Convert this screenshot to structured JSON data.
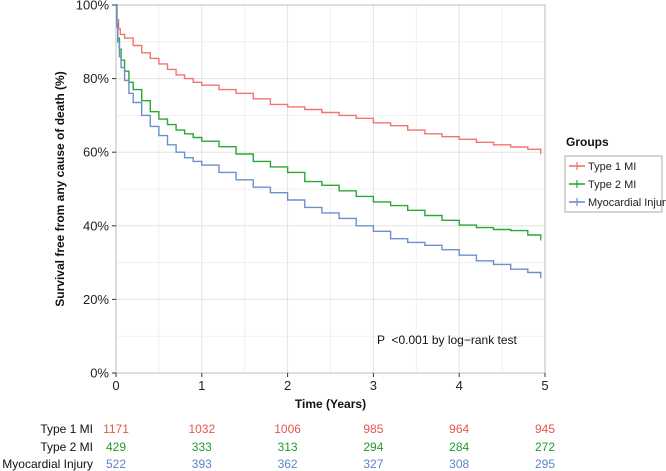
{
  "chart_data": {
    "type": "line",
    "title": "",
    "xlabel": "Time (Years)",
    "ylabel": "Survival free from any cause of death (%)",
    "xlim": [
      0,
      5
    ],
    "ylim": [
      0,
      100
    ],
    "x_ticks": [
      0,
      1,
      2,
      3,
      4,
      5
    ],
    "x_tick_labels": [
      "0",
      "1",
      "2",
      "3",
      "4",
      "5"
    ],
    "y_ticks": [
      0,
      20,
      40,
      60,
      80,
      100
    ],
    "y_tick_labels": [
      "0%",
      "20%",
      "40%",
      "60%",
      "80%",
      "100%"
    ],
    "grid": true,
    "legend": {
      "title": "Groups",
      "placement": "right"
    },
    "annotation": "P  <0.001 by log−rank test",
    "series": [
      {
        "name": "Type 1 MI",
        "color": "#f2756c",
        "points": [
          [
            0,
            100
          ],
          [
            0.01,
            96
          ],
          [
            0.03,
            93.5
          ],
          [
            0.05,
            92
          ],
          [
            0.1,
            91
          ],
          [
            0.2,
            89
          ],
          [
            0.3,
            87
          ],
          [
            0.4,
            85.5
          ],
          [
            0.5,
            84
          ],
          [
            0.6,
            82.5
          ],
          [
            0.7,
            81
          ],
          [
            0.8,
            80
          ],
          [
            0.9,
            79
          ],
          [
            1.0,
            78.2
          ],
          [
            1.2,
            77
          ],
          [
            1.4,
            76
          ],
          [
            1.6,
            74.5
          ],
          [
            1.8,
            73
          ],
          [
            2.0,
            72.3
          ],
          [
            2.2,
            71.6
          ],
          [
            2.4,
            70.8
          ],
          [
            2.6,
            70
          ],
          [
            2.8,
            69.2
          ],
          [
            3.0,
            68
          ],
          [
            3.2,
            67.2
          ],
          [
            3.4,
            66
          ],
          [
            3.6,
            65
          ],
          [
            3.8,
            64.2
          ],
          [
            4.0,
            63.5
          ],
          [
            4.2,
            62.7
          ],
          [
            4.4,
            62
          ],
          [
            4.6,
            61.4
          ],
          [
            4.8,
            60.8
          ],
          [
            4.95,
            60.2
          ]
        ]
      },
      {
        "name": "Type 2 MI",
        "color": "#29a835",
        "points": [
          [
            0,
            100
          ],
          [
            0.01,
            95
          ],
          [
            0.02,
            91
          ],
          [
            0.04,
            88
          ],
          [
            0.06,
            85
          ],
          [
            0.1,
            82
          ],
          [
            0.15,
            79
          ],
          [
            0.2,
            77
          ],
          [
            0.3,
            74
          ],
          [
            0.4,
            71
          ],
          [
            0.5,
            69
          ],
          [
            0.6,
            67.5
          ],
          [
            0.7,
            66
          ],
          [
            0.8,
            65
          ],
          [
            0.9,
            64
          ],
          [
            1.0,
            63
          ],
          [
            1.2,
            61.5
          ],
          [
            1.4,
            59.5
          ],
          [
            1.6,
            57.5
          ],
          [
            1.8,
            56
          ],
          [
            2.0,
            54.5
          ],
          [
            2.2,
            52
          ],
          [
            2.4,
            51
          ],
          [
            2.6,
            49.5
          ],
          [
            2.8,
            48
          ],
          [
            3.0,
            46.5
          ],
          [
            3.2,
            45.5
          ],
          [
            3.4,
            44.2
          ],
          [
            3.6,
            42.8
          ],
          [
            3.8,
            41.5
          ],
          [
            4.0,
            40.2
          ],
          [
            4.2,
            39.5
          ],
          [
            4.4,
            39
          ],
          [
            4.6,
            38.7
          ],
          [
            4.8,
            37.5
          ],
          [
            4.95,
            36.8
          ]
        ]
      },
      {
        "name": "Myocardial Injury",
        "color": "#6a90d0",
        "points": [
          [
            0,
            100
          ],
          [
            0.01,
            94
          ],
          [
            0.02,
            90
          ],
          [
            0.04,
            86
          ],
          [
            0.06,
            83
          ],
          [
            0.1,
            79.5
          ],
          [
            0.15,
            76
          ],
          [
            0.2,
            73.5
          ],
          [
            0.3,
            70
          ],
          [
            0.4,
            67
          ],
          [
            0.5,
            64.5
          ],
          [
            0.6,
            62
          ],
          [
            0.7,
            60
          ],
          [
            0.8,
            58.5
          ],
          [
            0.9,
            57.5
          ],
          [
            1.0,
            56.5
          ],
          [
            1.2,
            54.5
          ],
          [
            1.4,
            52.5
          ],
          [
            1.6,
            50.5
          ],
          [
            1.8,
            49
          ],
          [
            2.0,
            47
          ],
          [
            2.2,
            45
          ],
          [
            2.4,
            43.5
          ],
          [
            2.6,
            42
          ],
          [
            2.8,
            40
          ],
          [
            3.0,
            38.5
          ],
          [
            3.2,
            36.5
          ],
          [
            3.4,
            35.5
          ],
          [
            3.6,
            34.7
          ],
          [
            3.8,
            33.5
          ],
          [
            4.0,
            32
          ],
          [
            4.2,
            30.5
          ],
          [
            4.4,
            29.5
          ],
          [
            4.6,
            28.2
          ],
          [
            4.8,
            27.3
          ],
          [
            4.95,
            26.5
          ]
        ]
      }
    ],
    "risk_table": {
      "times": [
        0,
        1,
        2,
        3,
        4,
        5
      ],
      "rows": [
        {
          "name": "Type 1 MI",
          "color": "#e8554e",
          "values": [
            "1171",
            "1032",
            "1006",
            "985",
            "964",
            "945"
          ]
        },
        {
          "name": "Type 2 MI",
          "color": "#1f9a2b",
          "values": [
            "429",
            "333",
            "313",
            "294",
            "284",
            "272"
          ]
        },
        {
          "name": "Myocardial Injury",
          "color": "#5c84c8",
          "values": [
            "522",
            "393",
            "362",
            "327",
            "308",
            "295"
          ]
        }
      ]
    }
  }
}
